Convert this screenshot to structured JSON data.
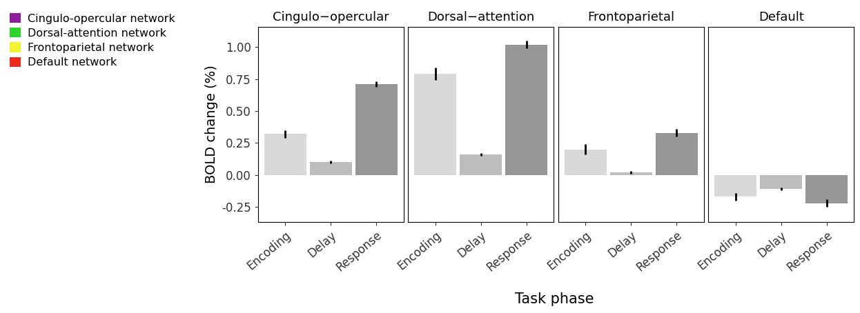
{
  "chart_data": [
    {
      "type": "bar",
      "title": "Cingulo−opercular",
      "categories": [
        "Encoding",
        "Delay",
        "Response"
      ],
      "values": [
        0.32,
        0.1,
        0.71
      ],
      "errors": [
        0.03,
        0.01,
        0.02
      ],
      "colors": [
        "#d9d9d9",
        "#bdbdbd",
        "#969696"
      ],
      "ylabel": "BOLD change (%)",
      "ylim": [
        -0.37,
        1.16
      ],
      "yticks": [
        {
          "value": -0.25,
          "label": "-0.25"
        },
        {
          "value": 0,
          "label": "0.00"
        },
        {
          "value": 0.25,
          "label": "0.25"
        },
        {
          "value": 0.5,
          "label": "0.50"
        },
        {
          "value": 0.75,
          "label": "0.75"
        },
        {
          "value": 1.0,
          "label": "1.00"
        }
      ],
      "tick_labels": true
    },
    {
      "type": "bar",
      "title": "Dorsal−attention",
      "categories": [
        "Encoding",
        "Delay",
        "Response"
      ],
      "values": [
        0.79,
        0.16,
        1.02
      ],
      "errors": [
        0.05,
        0.01,
        0.03
      ],
      "colors": [
        "#d9d9d9",
        "#bdbdbd",
        "#969696"
      ],
      "ylim": [
        -0.37,
        1.16
      ],
      "yticks": [
        -0.25,
        0,
        0.25,
        0.5,
        0.75,
        1.0
      ],
      "tick_labels": "x"
    },
    {
      "type": "bar",
      "title": "Frontoparietal",
      "categories": [
        "Encoding",
        "Delay",
        "Response"
      ],
      "values": [
        0.2,
        0.02,
        0.33
      ],
      "errors": [
        0.04,
        0.01,
        0.03
      ],
      "colors": [
        "#d9d9d9",
        "#bdbdbd",
        "#969696"
      ],
      "ylim": [
        -0.37,
        1.16
      ],
      "yticks": [
        -0.25,
        0,
        0.25,
        0.5,
        0.75,
        1.0
      ],
      "tick_labels": "x"
    },
    {
      "type": "bar",
      "title": "Default",
      "categories": [
        "Encoding",
        "Delay",
        "Response"
      ],
      "values": [
        -0.17,
        -0.11,
        -0.22
      ],
      "errors": [
        0.03,
        0.01,
        0.03
      ],
      "colors": [
        "#d9d9d9",
        "#bdbdbd",
        "#969696"
      ],
      "ylim": [
        -0.37,
        1.16
      ],
      "yticks": [
        -0.25,
        0,
        0.25,
        0.5,
        0.75,
        1.0
      ],
      "tick_labels": "x"
    }
  ],
  "shared_xlabel": "Task phase",
  "network_legend": [
    {
      "name": "Cingulo-opercular network",
      "color": "#8e1f9a"
    },
    {
      "name": "Dorsal-attention network",
      "color": "#2bd42b"
    },
    {
      "name": "Frontoparietal network",
      "color": "#f2f230"
    },
    {
      "name": "Default network",
      "color": "#ee2a1e"
    }
  ]
}
